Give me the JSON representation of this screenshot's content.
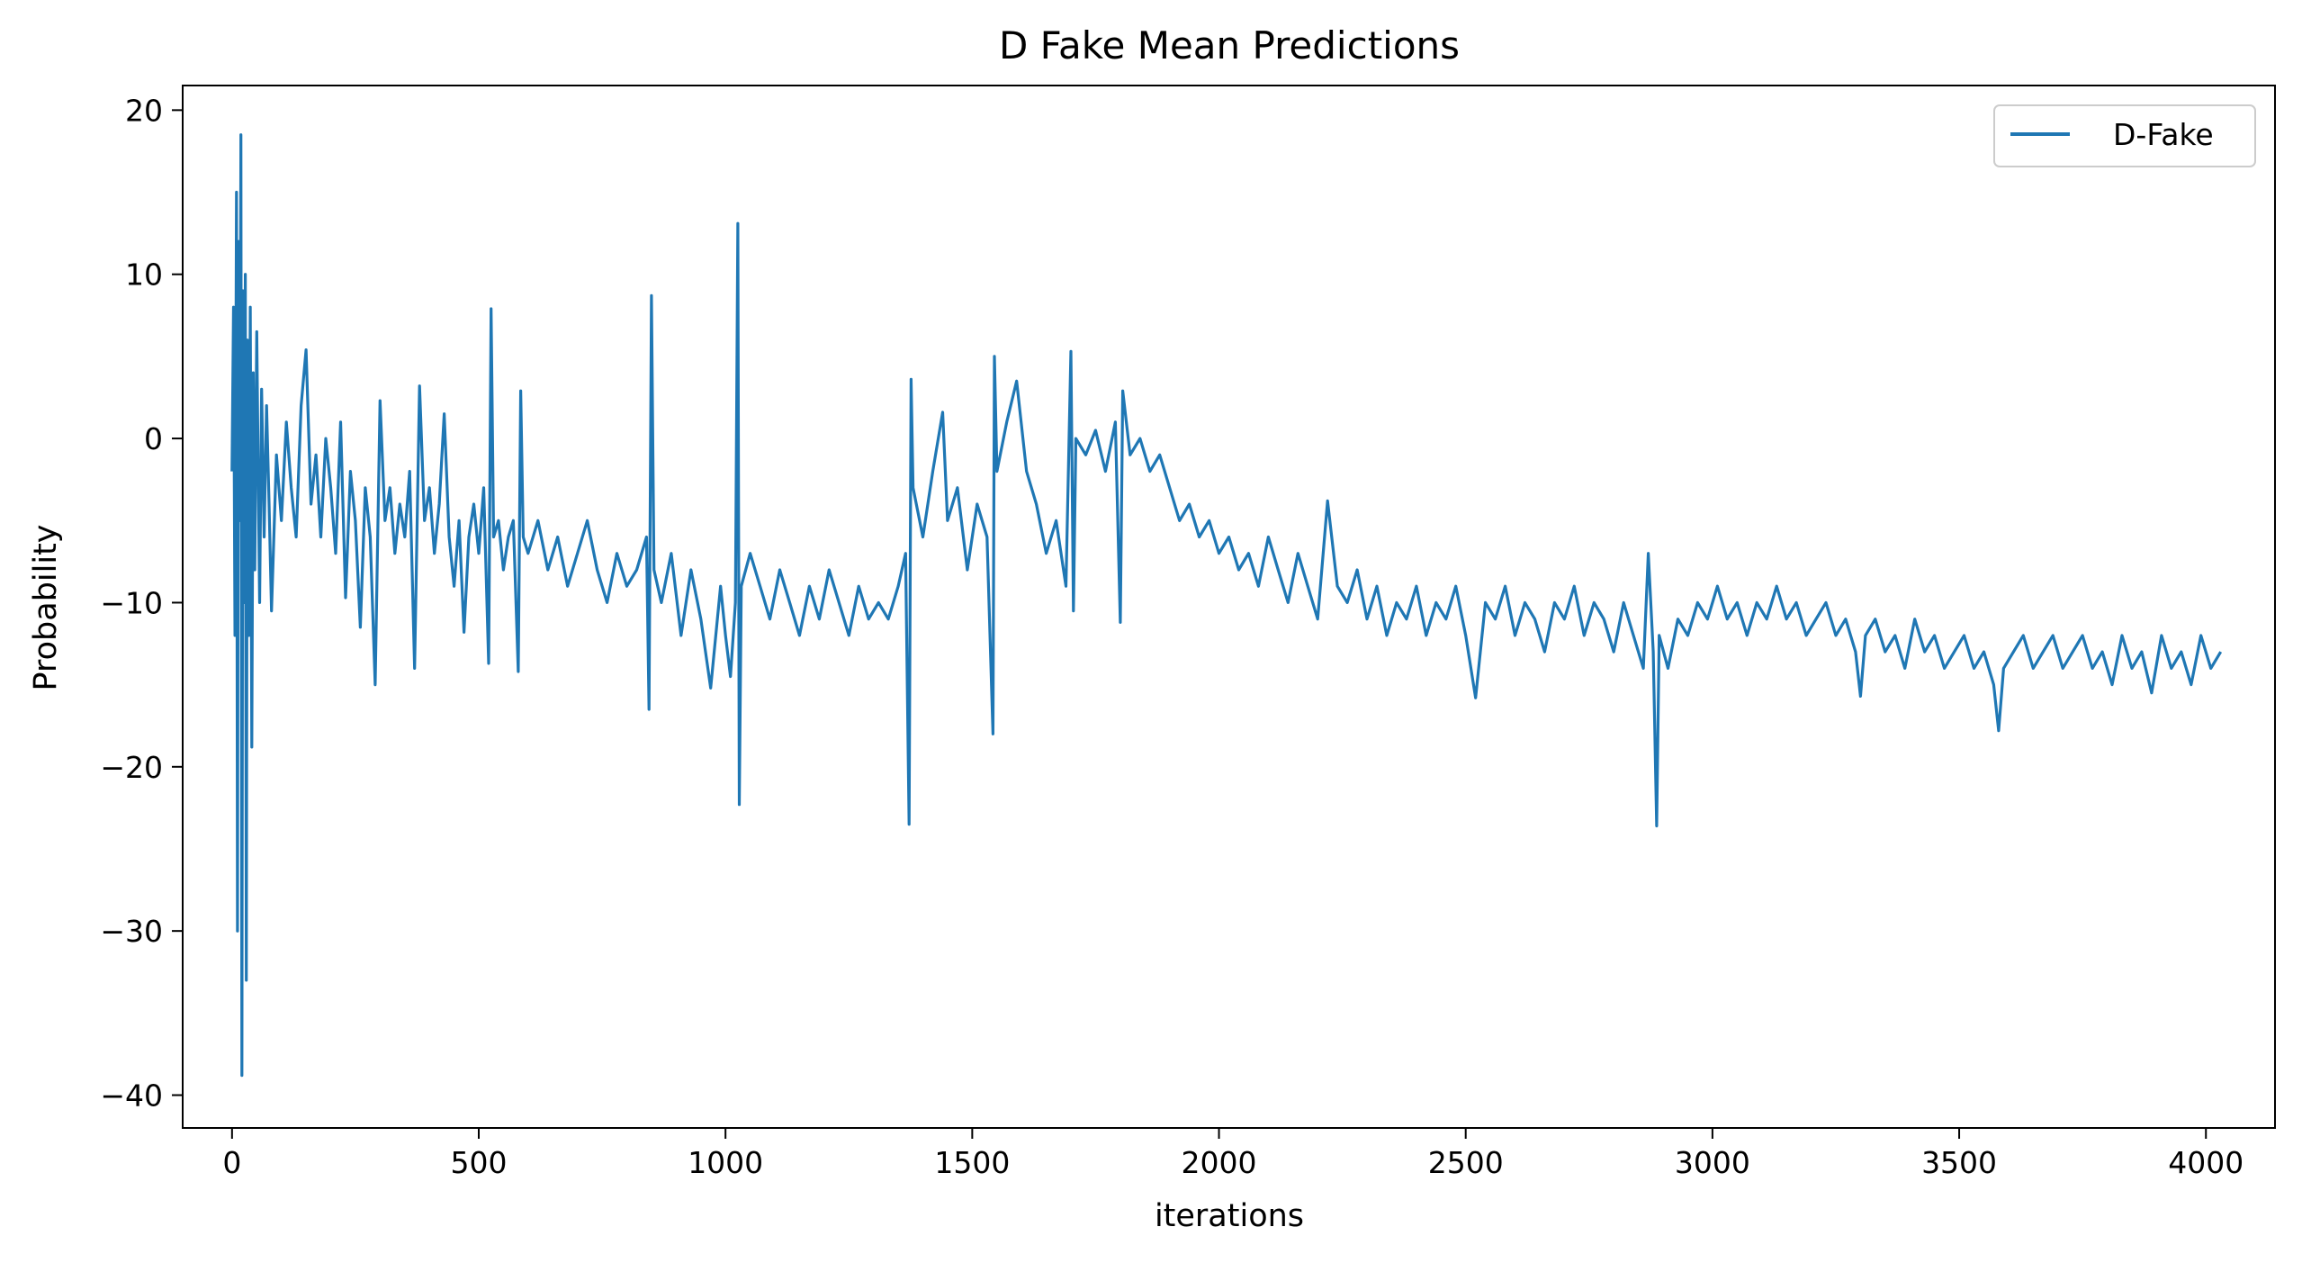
{
  "chart_data": {
    "type": "line",
    "title": "D Fake Mean Predictions",
    "xlabel": "iterations",
    "ylabel": "Probability",
    "xlim": [
      -100,
      4140
    ],
    "ylim": [
      -42,
      21.5
    ],
    "xticks": [
      0,
      500,
      1000,
      1500,
      2000,
      2500,
      3000,
      3500,
      4000
    ],
    "xtick_labels": [
      "0",
      "500",
      "1000",
      "1500",
      "2000",
      "2500",
      "3000",
      "3500",
      "4000"
    ],
    "yticks": [
      20,
      10,
      0,
      -10,
      -20,
      -30,
      -40
    ],
    "ytick_labels": [
      "20",
      "10",
      "0",
      "−10",
      "−20",
      "−30",
      "−40"
    ],
    "grid": false,
    "legend_position": "top-right",
    "colors": {
      "series": "#1f77b4",
      "axis": "#000000",
      "legend_border": "#cccccc"
    },
    "series": [
      {
        "name": "D-Fake",
        "points_approx": [
          [
            0,
            -2
          ],
          [
            3,
            8
          ],
          [
            6,
            -12
          ],
          [
            9,
            15
          ],
          [
            11,
            -30
          ],
          [
            13,
            12
          ],
          [
            16,
            -5
          ],
          [
            18,
            18.5
          ],
          [
            20,
            -38.8
          ],
          [
            22,
            9
          ],
          [
            25,
            -10
          ],
          [
            27,
            10
          ],
          [
            29,
            -33
          ],
          [
            31,
            6
          ],
          [
            34,
            -12
          ],
          [
            37,
            8
          ],
          [
            40,
            -18.8
          ],
          [
            43,
            4
          ],
          [
            46,
            -8
          ],
          [
            50,
            6.5
          ],
          [
            53,
            -2
          ],
          [
            56,
            -10
          ],
          [
            60,
            3
          ],
          [
            65,
            -6
          ],
          [
            70,
            2
          ],
          [
            75,
            -4
          ],
          [
            80,
            -10.5
          ],
          [
            90,
            -1
          ],
          [
            100,
            -5
          ],
          [
            110,
            1
          ],
          [
            120,
            -3
          ],
          [
            130,
            -6
          ],
          [
            140,
            2
          ],
          [
            150,
            5.4
          ],
          [
            160,
            -4
          ],
          [
            170,
            -1
          ],
          [
            180,
            -6
          ],
          [
            190,
            0
          ],
          [
            200,
            -3
          ],
          [
            210,
            -7
          ],
          [
            220,
            1
          ],
          [
            230,
            -9.7
          ],
          [
            240,
            -2
          ],
          [
            250,
            -5
          ],
          [
            260,
            -11.5
          ],
          [
            270,
            -3
          ],
          [
            280,
            -6
          ],
          [
            290,
            -15
          ],
          [
            300,
            2.3
          ],
          [
            310,
            -5
          ],
          [
            320,
            -3
          ],
          [
            330,
            -7
          ],
          [
            340,
            -4
          ],
          [
            350,
            -6
          ],
          [
            360,
            -2
          ],
          [
            370,
            -14
          ],
          [
            380,
            3.2
          ],
          [
            390,
            -5
          ],
          [
            400,
            -3
          ],
          [
            410,
            -7
          ],
          [
            420,
            -4
          ],
          [
            430,
            1.5
          ],
          [
            440,
            -6
          ],
          [
            450,
            -9
          ],
          [
            460,
            -5
          ],
          [
            470,
            -11.8
          ],
          [
            480,
            -6
          ],
          [
            490,
            -4
          ],
          [
            500,
            -7
          ],
          [
            510,
            -3
          ],
          [
            520,
            -13.7
          ],
          [
            525,
            7.9
          ],
          [
            530,
            -6
          ],
          [
            540,
            -5
          ],
          [
            550,
            -8
          ],
          [
            560,
            -6
          ],
          [
            570,
            -5
          ],
          [
            580,
            -14.2
          ],
          [
            585,
            2.9
          ],
          [
            590,
            -6
          ],
          [
            600,
            -7
          ],
          [
            620,
            -5
          ],
          [
            640,
            -8
          ],
          [
            660,
            -6
          ],
          [
            680,
            -9
          ],
          [
            700,
            -7
          ],
          [
            720,
            -5
          ],
          [
            740,
            -8
          ],
          [
            760,
            -10
          ],
          [
            780,
            -7
          ],
          [
            800,
            -9
          ],
          [
            820,
            -8
          ],
          [
            840,
            -6
          ],
          [
            845,
            -16.5
          ],
          [
            850,
            8.7
          ],
          [
            855,
            -8
          ],
          [
            870,
            -10
          ],
          [
            890,
            -7
          ],
          [
            910,
            -12
          ],
          [
            930,
            -8
          ],
          [
            950,
            -11
          ],
          [
            970,
            -15.2
          ],
          [
            990,
            -9
          ],
          [
            1000,
            -12
          ],
          [
            1010,
            -14.5
          ],
          [
            1020,
            -10
          ],
          [
            1025,
            13.1
          ],
          [
            1028,
            -22.3
          ],
          [
            1032,
            -9
          ],
          [
            1050,
            -7
          ],
          [
            1070,
            -9
          ],
          [
            1090,
            -11
          ],
          [
            1110,
            -8
          ],
          [
            1130,
            -10
          ],
          [
            1150,
            -12
          ],
          [
            1170,
            -9
          ],
          [
            1190,
            -11
          ],
          [
            1210,
            -8
          ],
          [
            1230,
            -10
          ],
          [
            1250,
            -12
          ],
          [
            1270,
            -9
          ],
          [
            1290,
            -11
          ],
          [
            1310,
            -10
          ],
          [
            1330,
            -11
          ],
          [
            1350,
            -9
          ],
          [
            1365,
            -7
          ],
          [
            1372,
            -23.5
          ],
          [
            1376,
            3.6
          ],
          [
            1380,
            -3
          ],
          [
            1400,
            -6
          ],
          [
            1420,
            -2
          ],
          [
            1440,
            1.6
          ],
          [
            1450,
            -5
          ],
          [
            1470,
            -3
          ],
          [
            1490,
            -8
          ],
          [
            1510,
            -4
          ],
          [
            1530,
            -6
          ],
          [
            1542,
            -18
          ],
          [
            1545,
            5
          ],
          [
            1550,
            -2
          ],
          [
            1570,
            1
          ],
          [
            1590,
            3.5
          ],
          [
            1610,
            -2
          ],
          [
            1630,
            -4
          ],
          [
            1650,
            -7
          ],
          [
            1670,
            -5
          ],
          [
            1690,
            -9
          ],
          [
            1700,
            5.3
          ],
          [
            1705,
            -10.5
          ],
          [
            1710,
            0
          ],
          [
            1730,
            -1
          ],
          [
            1750,
            0.5
          ],
          [
            1770,
            -2
          ],
          [
            1790,
            1
          ],
          [
            1800,
            -11.2
          ],
          [
            1805,
            2.9
          ],
          [
            1820,
            -1
          ],
          [
            1840,
            0
          ],
          [
            1860,
            -2
          ],
          [
            1880,
            -1
          ],
          [
            1900,
            -3
          ],
          [
            1920,
            -5
          ],
          [
            1940,
            -4
          ],
          [
            1960,
            -6
          ],
          [
            1980,
            -5
          ],
          [
            2000,
            -7
          ],
          [
            2020,
            -6
          ],
          [
            2040,
            -8
          ],
          [
            2060,
            -7
          ],
          [
            2080,
            -9
          ],
          [
            2100,
            -6
          ],
          [
            2120,
            -8
          ],
          [
            2140,
            -10
          ],
          [
            2160,
            -7
          ],
          [
            2180,
            -9
          ],
          [
            2200,
            -11
          ],
          [
            2220,
            -3.8
          ],
          [
            2240,
            -9
          ],
          [
            2260,
            -10
          ],
          [
            2280,
            -8
          ],
          [
            2300,
            -11
          ],
          [
            2320,
            -9
          ],
          [
            2340,
            -12
          ],
          [
            2360,
            -10
          ],
          [
            2380,
            -11
          ],
          [
            2400,
            -9
          ],
          [
            2420,
            -12
          ],
          [
            2440,
            -10
          ],
          [
            2460,
            -11
          ],
          [
            2480,
            -9
          ],
          [
            2500,
            -12
          ],
          [
            2520,
            -15.8
          ],
          [
            2540,
            -10
          ],
          [
            2560,
            -11
          ],
          [
            2580,
            -9
          ],
          [
            2600,
            -12
          ],
          [
            2620,
            -10
          ],
          [
            2640,
            -11
          ],
          [
            2660,
            -13
          ],
          [
            2680,
            -10
          ],
          [
            2700,
            -11
          ],
          [
            2720,
            -9
          ],
          [
            2740,
            -12
          ],
          [
            2760,
            -10
          ],
          [
            2780,
            -11
          ],
          [
            2800,
            -13
          ],
          [
            2820,
            -10
          ],
          [
            2840,
            -12
          ],
          [
            2860,
            -14
          ],
          [
            2870,
            -7
          ],
          [
            2880,
            -13
          ],
          [
            2887,
            -23.6
          ],
          [
            2892,
            -12
          ],
          [
            2910,
            -14
          ],
          [
            2930,
            -11
          ],
          [
            2950,
            -12
          ],
          [
            2970,
            -10
          ],
          [
            2990,
            -11
          ],
          [
            3010,
            -9
          ],
          [
            3030,
            -11
          ],
          [
            3050,
            -10
          ],
          [
            3070,
            -12
          ],
          [
            3090,
            -10
          ],
          [
            3110,
            -11
          ],
          [
            3130,
            -9
          ],
          [
            3150,
            -11
          ],
          [
            3170,
            -10
          ],
          [
            3190,
            -12
          ],
          [
            3210,
            -11
          ],
          [
            3230,
            -10
          ],
          [
            3250,
            -12
          ],
          [
            3270,
            -11
          ],
          [
            3290,
            -13
          ],
          [
            3300,
            -15.7
          ],
          [
            3310,
            -12
          ],
          [
            3330,
            -11
          ],
          [
            3350,
            -13
          ],
          [
            3370,
            -12
          ],
          [
            3390,
            -14
          ],
          [
            3410,
            -11
          ],
          [
            3430,
            -13
          ],
          [
            3450,
            -12
          ],
          [
            3470,
            -14
          ],
          [
            3490,
            -13
          ],
          [
            3510,
            -12
          ],
          [
            3530,
            -14
          ],
          [
            3550,
            -13
          ],
          [
            3570,
            -15
          ],
          [
            3580,
            -17.8
          ],
          [
            3590,
            -14
          ],
          [
            3610,
            -13
          ],
          [
            3630,
            -12
          ],
          [
            3650,
            -14
          ],
          [
            3670,
            -13
          ],
          [
            3690,
            -12
          ],
          [
            3710,
            -14
          ],
          [
            3730,
            -13
          ],
          [
            3750,
            -12
          ],
          [
            3770,
            -14
          ],
          [
            3790,
            -13
          ],
          [
            3810,
            -15
          ],
          [
            3830,
            -12
          ],
          [
            3850,
            -14
          ],
          [
            3870,
            -13
          ],
          [
            3890,
            -15.5
          ],
          [
            3910,
            -12
          ],
          [
            3930,
            -14
          ],
          [
            3950,
            -13
          ],
          [
            3970,
            -15
          ],
          [
            3990,
            -12
          ],
          [
            4010,
            -14
          ],
          [
            4030,
            -13
          ]
        ]
      }
    ]
  }
}
